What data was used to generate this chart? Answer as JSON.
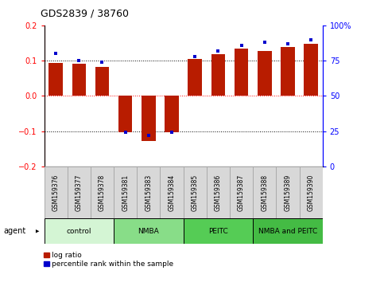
{
  "title": "GDS2839 / 38760",
  "samples": [
    "GSM159376",
    "GSM159377",
    "GSM159378",
    "GSM159381",
    "GSM159383",
    "GSM159384",
    "GSM159385",
    "GSM159386",
    "GSM159387",
    "GSM159388",
    "GSM159389",
    "GSM159390"
  ],
  "log_ratio": [
    0.093,
    0.092,
    0.082,
    -0.103,
    -0.128,
    -0.103,
    0.105,
    0.118,
    0.135,
    0.128,
    0.138,
    0.148
  ],
  "percentile": [
    80,
    75,
    74,
    24,
    22,
    24,
    78,
    82,
    86,
    88,
    87,
    90
  ],
  "ylim_left": [
    -0.2,
    0.2
  ],
  "ylim_right": [
    0,
    100
  ],
  "yticks_left": [
    -0.2,
    -0.1,
    0,
    0.1,
    0.2
  ],
  "yticks_right": [
    0,
    25,
    50,
    75,
    100
  ],
  "hlines": [
    0.1,
    0.0,
    -0.1
  ],
  "bar_color": "#b81c00",
  "dot_color": "#0000cc",
  "groups": [
    {
      "label": "control",
      "start": 0,
      "end": 3,
      "color": "#d4f5d4"
    },
    {
      "label": "NMBA",
      "start": 3,
      "end": 6,
      "color": "#88dd88"
    },
    {
      "label": "PEITC",
      "start": 6,
      "end": 9,
      "color": "#55cc55"
    },
    {
      "label": "NMBA and PEITC",
      "start": 9,
      "end": 12,
      "color": "#44bb44"
    }
  ],
  "legend_log_ratio": "log ratio",
  "legend_percentile": "percentile rank within the sample",
  "agent_label": "agent",
  "bar_width": 0.6,
  "bg_color": "#ffffff",
  "sample_box_color": "#d8d8d8",
  "sample_box_edge": "#aaaaaa"
}
